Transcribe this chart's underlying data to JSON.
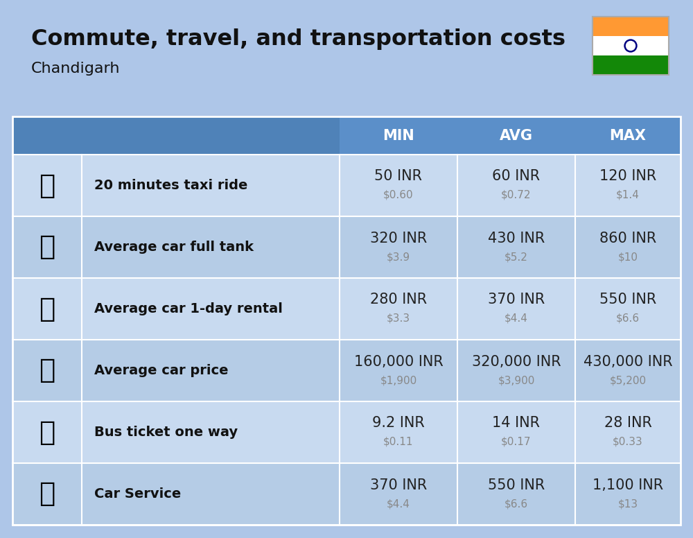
{
  "title": "Commute, travel, and transportation costs",
  "subtitle": "Chandigarh",
  "bg_color": "#aec6e8",
  "header_bg": "#5b8fc9",
  "header_left_bg": "#4f82b8",
  "row_bg_light": "#c8daf0",
  "row_bg_dark": "#b5cce6",
  "col_headers": [
    "MIN",
    "AVG",
    "MAX"
  ],
  "rows": [
    {
      "label": "20 minutes taxi ride",
      "min_inr": "50 INR",
      "min_usd": "$0.60",
      "avg_inr": "60 INR",
      "avg_usd": "$0.72",
      "max_inr": "120 INR",
      "max_usd": "$1.4"
    },
    {
      "label": "Average car full tank",
      "min_inr": "320 INR",
      "min_usd": "$3.9",
      "avg_inr": "430 INR",
      "avg_usd": "$5.2",
      "max_inr": "860 INR",
      "max_usd": "$10"
    },
    {
      "label": "Average car 1-day rental",
      "min_inr": "280 INR",
      "min_usd": "$3.3",
      "avg_inr": "370 INR",
      "avg_usd": "$4.4",
      "max_inr": "550 INR",
      "max_usd": "$6.6"
    },
    {
      "label": "Average car price",
      "min_inr": "160,000 INR",
      "min_usd": "$1,900",
      "avg_inr": "320,000 INR",
      "avg_usd": "$3,900",
      "max_inr": "430,000 INR",
      "max_usd": "$5,200"
    },
    {
      "label": "Bus ticket one way",
      "min_inr": "9.2 INR",
      "min_usd": "$0.11",
      "avg_inr": "14 INR",
      "avg_usd": "$0.17",
      "max_inr": "28 INR",
      "max_usd": "$0.33"
    },
    {
      "label": "Car Service",
      "min_inr": "370 INR",
      "min_usd": "$4.4",
      "avg_inr": "550 INR",
      "avg_usd": "$6.6",
      "max_inr": "1,100 INR",
      "max_usd": "$13"
    }
  ],
  "title_fontsize": 23,
  "subtitle_fontsize": 16,
  "header_fontsize": 15,
  "label_fontsize": 14,
  "inr_fontsize": 15,
  "usd_fontsize": 11,
  "flag_colors": [
    "#FF9933",
    "#FFFFFF",
    "#138808"
  ],
  "chakra_color": "#000080"
}
